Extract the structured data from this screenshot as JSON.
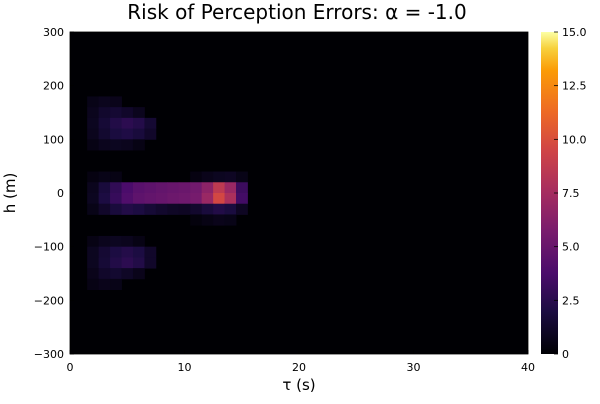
{
  "chart_data": {
    "type": "heatmap",
    "title": "Risk of Perception Errors: α = -1.0",
    "xlabel": "τ (s)",
    "ylabel": "h (m)",
    "xlim": [
      0,
      40
    ],
    "ylim": [
      -300,
      300
    ],
    "xticks": [
      "0",
      "10",
      "20",
      "30",
      "40"
    ],
    "yticks": [
      "300",
      "200",
      "100",
      "0",
      "−100",
      "−200",
      "−300"
    ],
    "colorbar": {
      "range": [
        0,
        15
      ],
      "ticks": [
        "15.0",
        "12.5",
        "10.0",
        "7.5",
        "5.0",
        "2.5",
        "0"
      ],
      "colormap": "inferno"
    },
    "grid": {
      "tau_step": 1,
      "h_step": 20,
      "default_value": 0
    },
    "nonzero_cells": [
      [
        2,
        170,
        0.6
      ],
      [
        3,
        170,
        0.8
      ],
      [
        4,
        170,
        0.7
      ],
      [
        2,
        150,
        0.8
      ],
      [
        3,
        150,
        1.3
      ],
      [
        4,
        150,
        1.5
      ],
      [
        5,
        150,
        1.2
      ],
      [
        6,
        150,
        0.8
      ],
      [
        2,
        130,
        0.9
      ],
      [
        3,
        130,
        1.6
      ],
      [
        4,
        130,
        2.2
      ],
      [
        5,
        130,
        2.6
      ],
      [
        6,
        130,
        2.3
      ],
      [
        7,
        130,
        1.5
      ],
      [
        2,
        110,
        0.8
      ],
      [
        3,
        110,
        1.4
      ],
      [
        4,
        110,
        1.9
      ],
      [
        5,
        110,
        2.1
      ],
      [
        6,
        110,
        1.8
      ],
      [
        7,
        110,
        1.2
      ],
      [
        2,
        90,
        0.5
      ],
      [
        3,
        90,
        0.8
      ],
      [
        4,
        90,
        0.9
      ],
      [
        5,
        90,
        0.8
      ],
      [
        6,
        90,
        0.5
      ],
      [
        2,
        30,
        0.4
      ],
      [
        3,
        30,
        0.6
      ],
      [
        4,
        30,
        0.5
      ],
      [
        11,
        30,
        0.4
      ],
      [
        12,
        30,
        0.7
      ],
      [
        13,
        30,
        0.9
      ],
      [
        14,
        30,
        1.0
      ],
      [
        15,
        30,
        0.6
      ],
      [
        2,
        10,
        0.8
      ],
      [
        3,
        10,
        1.8
      ],
      [
        4,
        10,
        2.8
      ],
      [
        5,
        10,
        3.8
      ],
      [
        6,
        10,
        4.4
      ],
      [
        7,
        10,
        4.6
      ],
      [
        8,
        10,
        4.8
      ],
      [
        9,
        10,
        5.0
      ],
      [
        10,
        10,
        5.1
      ],
      [
        11,
        10,
        5.4
      ],
      [
        12,
        10,
        6.5
      ],
      [
        13,
        10,
        8.6
      ],
      [
        14,
        10,
        7.0
      ],
      [
        15,
        10,
        3.2
      ],
      [
        2,
        -10,
        0.9
      ],
      [
        3,
        -10,
        2.0
      ],
      [
        4,
        -10,
        3.0
      ],
      [
        5,
        -10,
        4.0
      ],
      [
        6,
        -10,
        4.6
      ],
      [
        7,
        -10,
        4.8
      ],
      [
        8,
        -10,
        5.0
      ],
      [
        9,
        -10,
        5.2
      ],
      [
        10,
        -10,
        5.3
      ],
      [
        11,
        -10,
        5.6
      ],
      [
        12,
        -10,
        7.0
      ],
      [
        13,
        -10,
        9.6
      ],
      [
        14,
        -10,
        7.8
      ],
      [
        15,
        -10,
        3.5
      ],
      [
        2,
        -30,
        0.6
      ],
      [
        3,
        -30,
        1.2
      ],
      [
        4,
        -30,
        1.8
      ],
      [
        5,
        -30,
        2.2
      ],
      [
        6,
        -30,
        2.0
      ],
      [
        7,
        -30,
        1.6
      ],
      [
        8,
        -30,
        1.3
      ],
      [
        9,
        -30,
        1.1
      ],
      [
        10,
        -30,
        1.0
      ],
      [
        11,
        -30,
        1.3
      ],
      [
        12,
        -30,
        1.8
      ],
      [
        13,
        -30,
        2.2
      ],
      [
        14,
        -30,
        1.9
      ],
      [
        15,
        -30,
        1.0
      ],
      [
        11,
        -50,
        0.3
      ],
      [
        12,
        -50,
        0.5
      ],
      [
        13,
        -50,
        0.7
      ],
      [
        14,
        -50,
        0.6
      ],
      [
        2,
        -90,
        0.5
      ],
      [
        3,
        -90,
        0.8
      ],
      [
        4,
        -90,
        0.9
      ],
      [
        5,
        -90,
        0.8
      ],
      [
        6,
        -90,
        0.5
      ],
      [
        2,
        -110,
        0.9
      ],
      [
        3,
        -110,
        1.5
      ],
      [
        4,
        -110,
        2.0
      ],
      [
        5,
        -110,
        2.3
      ],
      [
        6,
        -110,
        2.0
      ],
      [
        7,
        -110,
        1.2
      ],
      [
        2,
        -130,
        0.9
      ],
      [
        3,
        -130,
        1.6
      ],
      [
        4,
        -130,
        2.2
      ],
      [
        5,
        -130,
        2.6
      ],
      [
        6,
        -130,
        2.2
      ],
      [
        7,
        -130,
        1.2
      ],
      [
        2,
        -150,
        0.7
      ],
      [
        3,
        -150,
        1.2
      ],
      [
        4,
        -150,
        1.4
      ],
      [
        5,
        -150,
        1.1
      ],
      [
        6,
        -150,
        0.7
      ],
      [
        2,
        -170,
        0.5
      ],
      [
        3,
        -170,
        0.7
      ],
      [
        4,
        -170,
        0.6
      ]
    ]
  }
}
